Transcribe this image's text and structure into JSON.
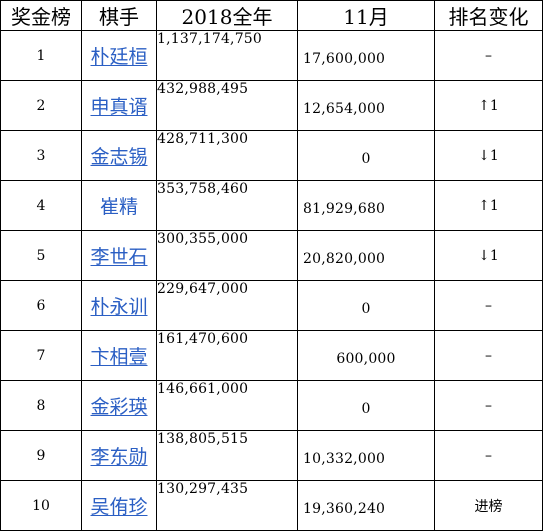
{
  "header": {
    "rank": "奖金榜",
    "player": "棋手",
    "year": "2018全年",
    "month": "11月",
    "change": "排名变化"
  },
  "rows": [
    {
      "rank": "1",
      "player": "朴廷桓",
      "year": "1,137,174,750",
      "month": "17,600,000",
      "change": "–"
    },
    {
      "rank": "2",
      "player": "申真谞",
      "year": "432,988,495",
      "month": "12,654,000",
      "change": "↑1"
    },
    {
      "rank": "3",
      "player": "金志锡",
      "year": "428,711,300",
      "month": "0",
      "change": "↓1"
    },
    {
      "rank": "4",
      "player": "崔精",
      "year": "353,758,460",
      "month": "81,929,680",
      "change": "↑1"
    },
    {
      "rank": "5",
      "player": "李世石",
      "year": "300,355,000",
      "month": "20,820,000",
      "change": "↓1"
    },
    {
      "rank": "6",
      "player": "朴永训",
      "year": "229,647,000",
      "month": "0",
      "change": "–"
    },
    {
      "rank": "7",
      "player": "卞相壹",
      "year": "161,470,600",
      "month": "600,000",
      "change": "–"
    },
    {
      "rank": "8",
      "player": "金彩瑛",
      "year": "146,661,000",
      "month": "0",
      "change": "–"
    },
    {
      "rank": "9",
      "player": "李东勋",
      "year": "138,805,515",
      "month": "10,332,000",
      "change": "–"
    },
    {
      "rank": "10",
      "player": "吴侑珍",
      "year": "130,297,435",
      "month": "19,360,240",
      "change": "进榜"
    }
  ],
  "colors": {
    "link": "#2b5fc4",
    "border": "#000000",
    "text": "#000000"
  }
}
